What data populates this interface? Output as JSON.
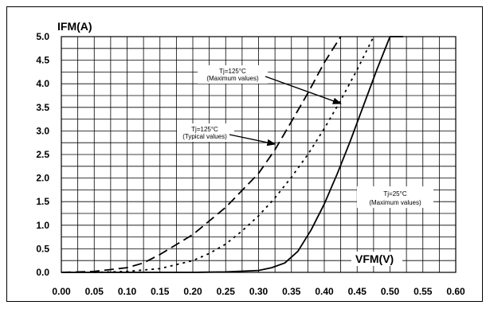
{
  "chart_data": {
    "type": "line",
    "xlabel": "VFM(V)",
    "ylabel": "IFM(A)",
    "xlim": [
      0.0,
      0.6
    ],
    "ylim": [
      0.0,
      5.0
    ],
    "x_major_ticks": [
      0.0,
      0.05,
      0.1,
      0.15,
      0.2,
      0.25,
      0.3,
      0.35,
      0.4,
      0.45,
      0.5,
      0.55,
      0.6
    ],
    "x_tick_labels": [
      "0.00",
      "0.05",
      "0.10",
      "0.15",
      "0.20",
      "0.25",
      "0.30",
      "0.35",
      "0.40",
      "0.45",
      "0.50",
      "0.55",
      "0.60"
    ],
    "y_major_ticks": [
      0.0,
      0.5,
      1.0,
      1.5,
      2.0,
      2.5,
      3.0,
      3.5,
      4.0,
      4.5,
      5.0
    ],
    "y_tick_labels": [
      "0.0",
      "0.5",
      "1.0",
      "1.5",
      "2.0",
      "2.5",
      "3.0",
      "3.5",
      "4.0",
      "4.5",
      "5.0"
    ],
    "grid": true,
    "series": [
      {
        "line_style": "dashed",
        "x": [
          0.0,
          0.05,
          0.1,
          0.125,
          0.15,
          0.2,
          0.25,
          0.3,
          0.325,
          0.35,
          0.375,
          0.4,
          0.425
        ],
        "y": [
          0.0,
          0.02,
          0.1,
          0.2,
          0.38,
          0.8,
          1.38,
          2.1,
          2.6,
          3.2,
          3.8,
          4.45,
          5.0
        ]
      },
      {
        "line_style": "dotted",
        "x": [
          0.05,
          0.1,
          0.15,
          0.2,
          0.225,
          0.25,
          0.275,
          0.3,
          0.325,
          0.35,
          0.375,
          0.4,
          0.425,
          0.45,
          0.475
        ],
        "y": [
          0.0,
          0.02,
          0.08,
          0.25,
          0.4,
          0.6,
          0.88,
          1.2,
          1.58,
          2.02,
          2.5,
          3.05,
          3.65,
          4.3,
          5.0
        ]
      },
      {
        "line_style": "solid",
        "x": [
          0.0,
          0.2,
          0.25,
          0.3,
          0.32,
          0.34,
          0.36,
          0.38,
          0.4,
          0.42,
          0.44,
          0.46,
          0.48,
          0.5,
          0.52
        ],
        "y": [
          0.0,
          0.0,
          0.01,
          0.04,
          0.1,
          0.2,
          0.45,
          0.9,
          1.45,
          2.1,
          2.8,
          3.55,
          4.3,
          5.0,
          5.0
        ]
      }
    ],
    "annotations": [
      {
        "lines": [
          "Tj=125°C",
          "(Maximum values)"
        ],
        "arrow_to": [
          0.425,
          3.58
        ]
      },
      {
        "lines": [
          "Tj=125°C",
          "(Typical values)"
        ],
        "arrow_to": [
          0.325,
          2.72
        ]
      },
      {
        "lines": [
          "Tj=25°C",
          "(Maximum values)"
        ]
      }
    ]
  }
}
